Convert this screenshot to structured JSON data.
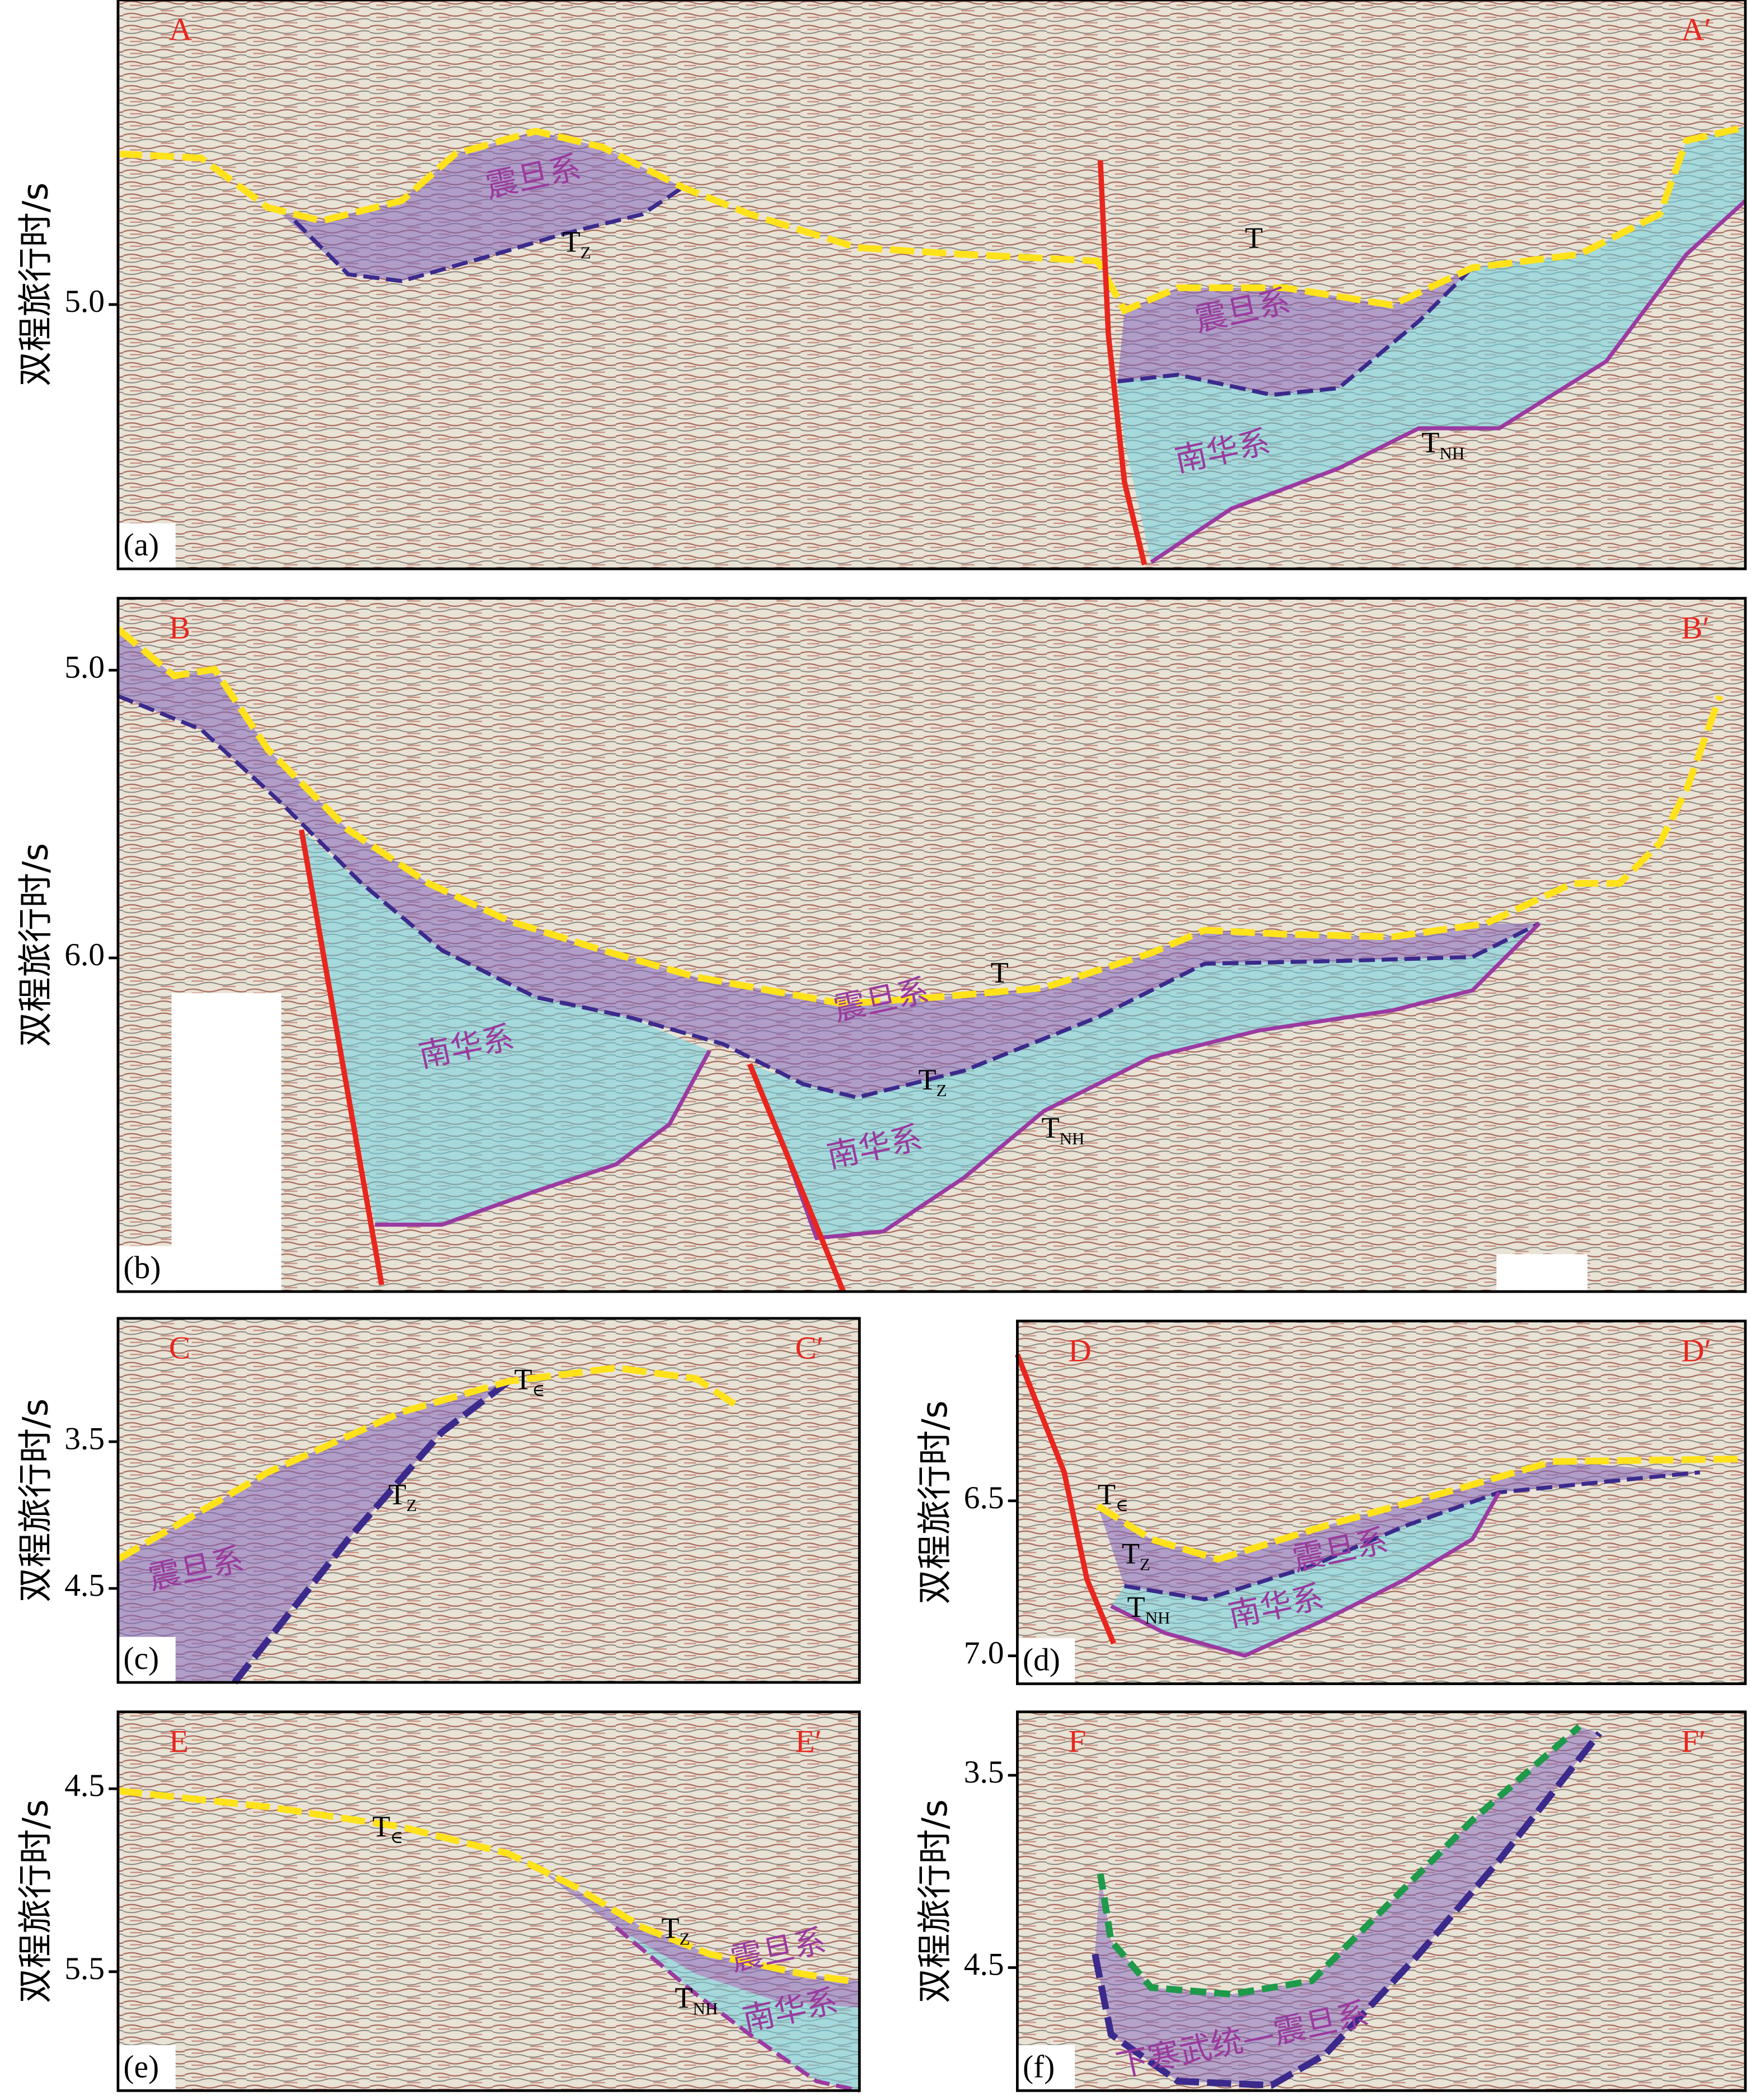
{
  "panels": [
    {
      "label": "(a)",
      "left": "A",
      "right": "A′",
      "y_title": "双程旅行时/s",
      "ylim": [
        3.94,
        5.92
      ],
      "yticks": [
        {
          "value": 5,
          "label": "5.0"
        }
      ],
      "horizons": [
        {
          "t": "T",
          "sub": "Z"
        },
        {
          "t": "T"
        },
        {
          "t": "T",
          "sub": "NH"
        }
      ],
      "units": [
        "震旦系",
        "震旦系",
        "南华系"
      ]
    },
    {
      "label": "(b)",
      "left": "B",
      "right": "B′",
      "y_title": "双程旅行时/s",
      "ylim": [
        4.75,
        7.16
      ],
      "yticks": [
        {
          "value": 5,
          "label": "5.0"
        },
        {
          "value": 6,
          "label": "6.0"
        }
      ],
      "horizons": [
        {
          "t": "T"
        },
        {
          "t": "T",
          "sub": "Z"
        },
        {
          "t": "T",
          "sub": "NH"
        }
      ],
      "units": [
        "南华系",
        "震旦系",
        "南华系"
      ]
    },
    {
      "label": "(c)",
      "left": "C",
      "right": "C′",
      "y_title": "双程旅行时/s",
      "ylim": [
        2.66,
        5.14
      ],
      "yticks": [
        3.5,
        4.5
      ],
      "horizons": [
        {
          "t": "T",
          "sub": "∈"
        },
        {
          "t": "T",
          "sub": "Z"
        }
      ],
      "units": [
        "震旦系"
      ]
    },
    {
      "label": "(d)",
      "left": "D",
      "right": "D′",
      "y_title": "双程旅行时/s",
      "ylim": [
        5.92,
        7.09
      ],
      "yticks": [
        6.5,
        {
          "value": 7,
          "label": "7.0"
        }
      ],
      "horizons": [
        {
          "t": "T",
          "sub": "∈"
        },
        {
          "t": "T",
          "sub": "Z"
        },
        {
          "t": "T",
          "sub": "NH"
        }
      ],
      "units": [
        "震旦系",
        "南华系"
      ]
    },
    {
      "label": "(e)",
      "left": "E",
      "right": "E′",
      "y_title": "双程旅行时/s",
      "ylim": [
        4.08,
        6.15
      ],
      "yticks": [
        4.5,
        5.5
      ],
      "horizons": [
        {
          "t": "T",
          "sub": "∈"
        },
        {
          "t": "T",
          "sub": "Z"
        },
        {
          "t": "T",
          "sub": "NH"
        }
      ],
      "units": [
        "震旦系",
        "南华系"
      ]
    },
    {
      "label": "(f)",
      "left": "F",
      "right": "F′",
      "y_title": "双程旅行时/s",
      "ylim": [
        3.17,
        5.14
      ],
      "yticks": [
        3.5,
        4.5
      ],
      "horizons": [],
      "units": [
        "下寒武统—震旦系"
      ]
    }
  ]
}
